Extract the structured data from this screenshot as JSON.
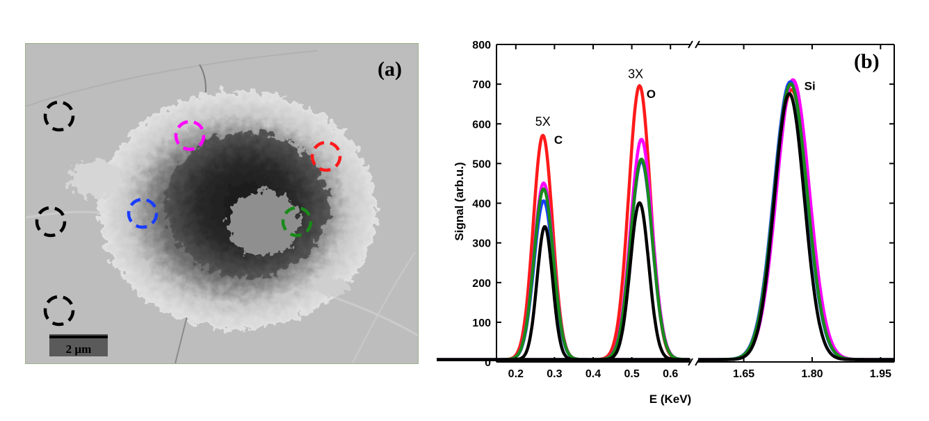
{
  "panel_a": {
    "label": "(a)",
    "scale_bar_label": "2 µm",
    "marker_colors": {
      "reference": "#000000",
      "magenta": "#ff00ff",
      "red": "#ff1a1a",
      "blue": "#1a3dff",
      "green": "#1a8a1a"
    }
  },
  "chart_data": {
    "type": "line",
    "panel_label": "(b)",
    "xlabel": "E (KeV)",
    "ylabel": "Signal (arb.u.)",
    "ylim": [
      0,
      800
    ],
    "yticks": [
      0,
      100,
      200,
      300,
      400,
      500,
      600,
      700,
      800
    ],
    "x_broken_axis": true,
    "xlim_left": [
      0.15,
      0.65
    ],
    "xlim_right": [
      1.55,
      1.98
    ],
    "xticks_left": [
      "0.2",
      "0.3",
      "0.4",
      "0.5",
      "0.6"
    ],
    "xticks_right": [
      "1.65",
      "1.80",
      "1.95"
    ],
    "grid": false,
    "annotations": [
      {
        "text": "5X",
        "x": 0.27,
        "y": 595
      },
      {
        "text": "C",
        "x": 0.31,
        "y": 550
      },
      {
        "text": "3X",
        "x": 0.51,
        "y": 715
      },
      {
        "text": "O",
        "x": 0.55,
        "y": 665
      },
      {
        "text": "Si",
        "x": 1.795,
        "y": 685
      }
    ],
    "series": [
      {
        "color": "#ff1a1a",
        "peaks": [
          {
            "center": 0.27,
            "height": 565,
            "sigma": 0.025
          },
          {
            "center": 0.52,
            "height": 690,
            "sigma": 0.028
          },
          {
            "center": 1.755,
            "height": 680,
            "sigma": 0.036
          }
        ]
      },
      {
        "color": "#ff00ff",
        "peaks": [
          {
            "center": 0.272,
            "height": 445,
            "sigma": 0.025
          },
          {
            "center": 0.525,
            "height": 555,
            "sigma": 0.028
          },
          {
            "center": 1.758,
            "height": 705,
            "sigma": 0.036
          }
        ]
      },
      {
        "color": "#1a3dff",
        "peaks": [
          {
            "center": 0.272,
            "height": 400,
            "sigma": 0.025
          },
          {
            "center": 0.525,
            "height": 500,
            "sigma": 0.028
          },
          {
            "center": 1.752,
            "height": 700,
            "sigma": 0.036
          }
        ]
      },
      {
        "color": "#1a8a1a",
        "peaks": [
          {
            "center": 0.272,
            "height": 430,
            "sigma": 0.025
          },
          {
            "center": 0.525,
            "height": 505,
            "sigma": 0.028
          },
          {
            "center": 1.753,
            "height": 695,
            "sigma": 0.036
          }
        ]
      },
      {
        "color": "#000000",
        "peaks": [
          {
            "center": 0.275,
            "height": 335,
            "sigma": 0.02
          },
          {
            "center": 0.52,
            "height": 395,
            "sigma": 0.024
          },
          {
            "center": 1.75,
            "height": 670,
            "sigma": 0.033
          }
        ]
      }
    ]
  }
}
